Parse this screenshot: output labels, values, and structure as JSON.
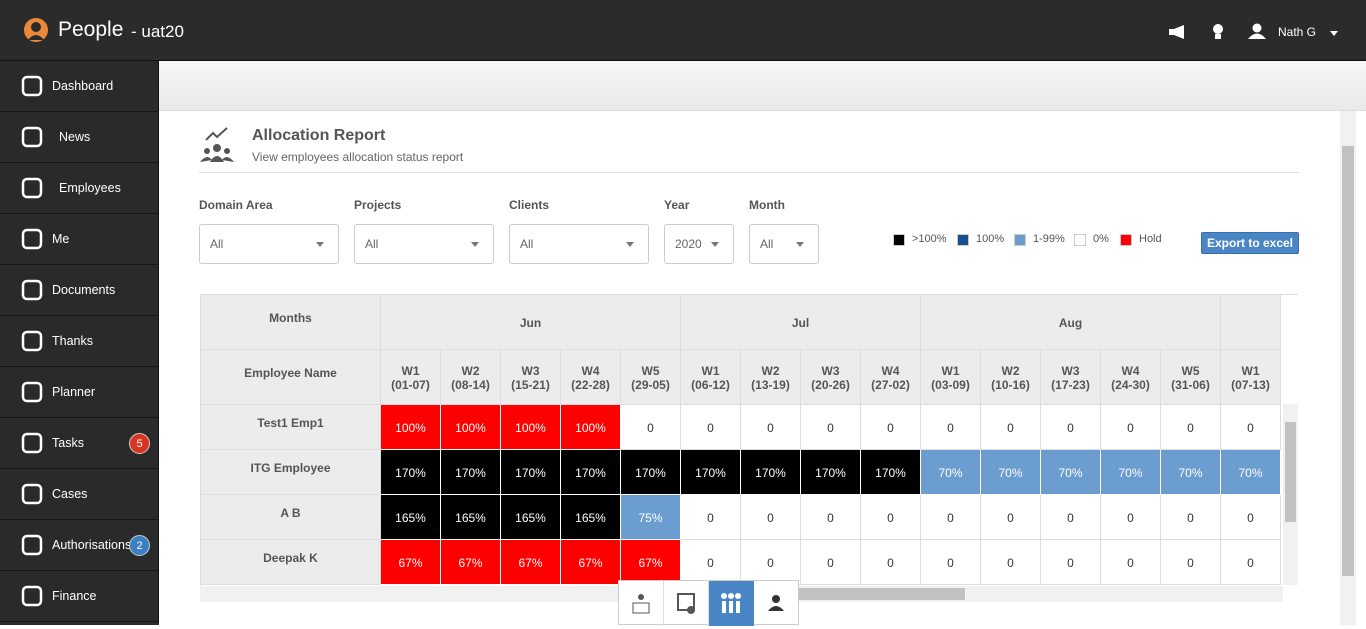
{
  "header": {
    "app_name": "People",
    "environment": "- uat20",
    "user": "Nath G"
  },
  "sidebar": [
    {
      "label": "Dashboard"
    },
    {
      "label": "News"
    },
    {
      "label": "Employees"
    },
    {
      "label": "Me"
    },
    {
      "label": "Documents"
    },
    {
      "label": "Thanks"
    },
    {
      "label": "Planner"
    },
    {
      "label": "Tasks",
      "badge": "5",
      "badge_color": "#d9341f"
    },
    {
      "label": "Cases"
    },
    {
      "label": "Authorisations",
      "badge": "2",
      "badge_color": "#3a7fc1"
    },
    {
      "label": "Finance"
    }
  ],
  "page": {
    "title": "Allocation Report",
    "subtitle": "View employees allocation status report"
  },
  "filters": [
    {
      "label": "Domain Area",
      "value": "All"
    },
    {
      "label": "Projects",
      "value": "All"
    },
    {
      "label": "Clients",
      "value": "All"
    },
    {
      "label": "Year",
      "value": "2020"
    },
    {
      "label": "Month",
      "value": "All"
    }
  ],
  "legend": [
    {
      "label": ">100%",
      "color": "#000000"
    },
    {
      "label": "100%",
      "color": "#1a4f8f"
    },
    {
      "label": "1-99%",
      "color": "#6b9dd0"
    },
    {
      "label": "0%",
      "color": "#ffffff"
    },
    {
      "label": "Hold",
      "color": "#ff0000"
    }
  ],
  "export_button": "Export to excel",
  "table": {
    "corner_top": "Months",
    "corner_bottom": "Employee Name",
    "months": [
      {
        "name": "Jun",
        "weeks": [
          {
            "week": "W1",
            "dates": "(01-07)"
          },
          {
            "week": "W2",
            "dates": "(08-14)"
          },
          {
            "week": "W3",
            "dates": "(15-21)"
          },
          {
            "week": "W4",
            "dates": "(22-28)"
          },
          {
            "week": "W5",
            "dates": "(29-05)"
          }
        ]
      },
      {
        "name": "Jul",
        "weeks": [
          {
            "week": "W1",
            "dates": "(06-12)"
          },
          {
            "week": "W2",
            "dates": "(13-19)"
          },
          {
            "week": "W3",
            "dates": "(20-26)"
          },
          {
            "week": "W4",
            "dates": "(27-02)"
          }
        ]
      },
      {
        "name": "Aug",
        "weeks": [
          {
            "week": "W1",
            "dates": "(03-09)"
          },
          {
            "week": "W2",
            "dates": "(10-16)"
          },
          {
            "week": "W3",
            "dates": "(17-23)"
          },
          {
            "week": "W4",
            "dates": "(24-30)"
          },
          {
            "week": "W5",
            "dates": "(31-06)"
          }
        ]
      },
      {
        "weeks": [
          {
            "week": "W1",
            "dates": "(07-13)"
          }
        ]
      }
    ],
    "rows": [
      {
        "name": "Test1 Emp1",
        "cells": [
          "100%",
          "100%",
          "100%",
          "100%",
          "0",
          "0",
          "0",
          "0",
          "0",
          "0",
          "0",
          "0",
          "0",
          "0",
          "0"
        ],
        "colors": [
          "#ff0000",
          "#ff0000",
          "#ff0000",
          "#ff0000",
          null,
          null,
          null,
          null,
          null,
          null,
          null,
          null,
          null,
          null,
          null
        ]
      },
      {
        "name": "ITG Employee",
        "cells": [
          "170%",
          "170%",
          "170%",
          "170%",
          "170%",
          "170%",
          "170%",
          "170%",
          "170%",
          "70%",
          "70%",
          "70%",
          "70%",
          "70%",
          "70%"
        ],
        "colors": [
          "#000000",
          "#000000",
          "#000000",
          "#000000",
          "#000000",
          "#000000",
          "#000000",
          "#000000",
          "#000000",
          "#6b9dd0",
          "#6b9dd0",
          "#6b9dd0",
          "#6b9dd0",
          "#6b9dd0",
          "#6b9dd0"
        ]
      },
      {
        "name": "A B",
        "cells": [
          "165%",
          "165%",
          "165%",
          "165%",
          "75%",
          "0",
          "0",
          "0",
          "0",
          "0",
          "0",
          "0",
          "0",
          "0",
          "0"
        ],
        "colors": [
          "#000000",
          "#000000",
          "#000000",
          "#000000",
          "#6b9dd0",
          null,
          null,
          null,
          null,
          null,
          null,
          null,
          null,
          null,
          null
        ]
      },
      {
        "name": "Deepak K",
        "cells": [
          "67%",
          "67%",
          "67%",
          "67%",
          "67%",
          "0",
          "0",
          "0",
          "0",
          "0",
          "0",
          "0",
          "0",
          "0",
          "0"
        ],
        "colors": [
          "#ff0000",
          "#ff0000",
          "#ff0000",
          "#ff0000",
          "#ff0000",
          null,
          null,
          null,
          null,
          null,
          null,
          null,
          null,
          null,
          null
        ]
      }
    ]
  }
}
